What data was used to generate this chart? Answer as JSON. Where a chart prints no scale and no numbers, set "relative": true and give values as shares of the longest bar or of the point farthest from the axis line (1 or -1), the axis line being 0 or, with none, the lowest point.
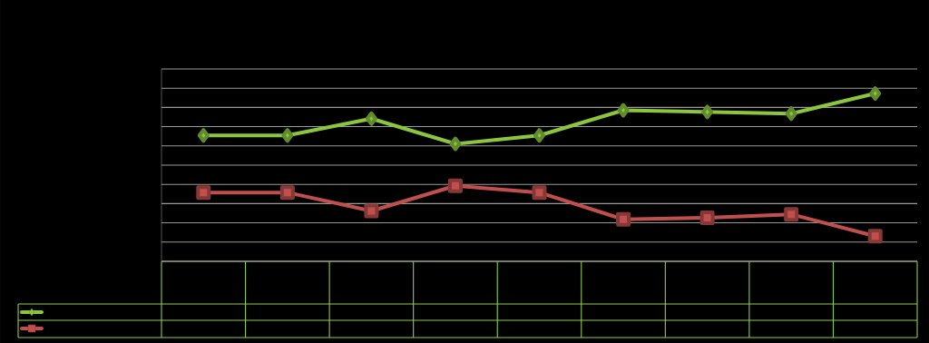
{
  "chart_data": {
    "type": "line",
    "relative": true,
    "categories": [
      null,
      null,
      null,
      null,
      null,
      null,
      null,
      null,
      null
    ],
    "series": [
      {
        "color": "#8cc63f",
        "marker": "diamond",
        "values": [
          0.75,
          0.75,
          0.85,
          0.7,
          0.75,
          0.9,
          0.89,
          0.88,
          1.0
        ]
      },
      {
        "color": "#c0504d",
        "marker": "square",
        "values": [
          0.41,
          0.41,
          0.3,
          0.45,
          0.41,
          0.25,
          0.26,
          0.28,
          0.15
        ]
      }
    ],
    "grid": "y",
    "line_style": "solid"
  }
}
